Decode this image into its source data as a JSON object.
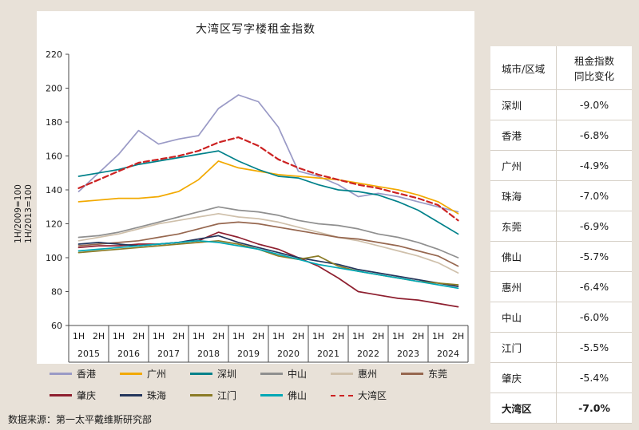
{
  "colors": {
    "page_background": "#e8e1d8",
    "panel_background": "#ffffff",
    "axis": "#4a4a4a",
    "table_grid": "#d6d0c7"
  },
  "chart_data": {
    "type": "line",
    "title": "大湾区写字楼租金指数",
    "ylim": [
      60,
      220
    ],
    "ytick_step": 20,
    "yaxis_note_lines": [
      "1H/2009=100",
      "1H/2013=100"
    ],
    "x_half_labels": [
      "1H",
      "2H"
    ],
    "years": [
      "2015",
      "2016",
      "2017",
      "2018",
      "2019",
      "2020",
      "2021",
      "2022",
      "2023",
      "2024"
    ],
    "series": [
      {
        "name": "香港",
        "color": "#9a9ac6",
        "dash": false,
        "values": [
          139,
          150,
          161,
          175,
          167,
          170,
          172,
          188,
          196,
          192,
          177,
          151,
          148,
          143,
          136,
          138,
          136,
          133,
          130,
          127
        ]
      },
      {
        "name": "广州",
        "color": "#f2a900",
        "dash": false,
        "values": [
          133,
          134,
          135,
          135,
          136,
          139,
          146,
          157,
          153,
          151,
          149,
          148,
          147,
          146,
          144,
          142,
          140,
          137,
          133,
          126
        ]
      },
      {
        "name": "深圳",
        "color": "#00818a",
        "dash": false,
        "values": [
          148,
          150,
          152,
          155,
          157,
          159,
          161,
          163,
          157,
          152,
          148,
          147,
          143,
          140,
          139,
          137,
          133,
          128,
          121,
          114
        ]
      },
      {
        "name": "中山",
        "color": "#8f8f8f",
        "dash": false,
        "values": [
          112,
          113,
          115,
          118,
          121,
          124,
          127,
          130,
          128,
          127,
          125,
          122,
          120,
          119,
          117,
          114,
          112,
          109,
          105,
          100
        ]
      },
      {
        "name": "惠州",
        "color": "#cfc0ab",
        "dash": false,
        "values": [
          110,
          112,
          114,
          117,
          120,
          122,
          124,
          126,
          124,
          123,
          121,
          118,
          115,
          112,
          110,
          107,
          104,
          101,
          97,
          91
        ]
      },
      {
        "name": "东莞",
        "color": "#96674f",
        "dash": false,
        "values": [
          107,
          108,
          109,
          110,
          112,
          114,
          117,
          120,
          121,
          120,
          118,
          116,
          114,
          112,
          111,
          109,
          107,
          104,
          101,
          95
        ]
      },
      {
        "name": "肇庆",
        "color": "#8e1f2f",
        "dash": false,
        "values": [
          106,
          107,
          107,
          108,
          108,
          109,
          110,
          115,
          112,
          108,
          105,
          100,
          95,
          88,
          80,
          78,
          76,
          75,
          73,
          71
        ]
      },
      {
        "name": "珠海",
        "color": "#24365c",
        "dash": false,
        "values": [
          108,
          109,
          108,
          107,
          108,
          109,
          111,
          113,
          109,
          106,
          103,
          100,
          98,
          96,
          93,
          91,
          89,
          87,
          85,
          83
        ]
      },
      {
        "name": "江门",
        "color": "#8a7a25",
        "dash": false,
        "values": [
          103,
          104,
          105,
          106,
          107,
          108,
          109,
          110,
          108,
          105,
          101,
          99,
          101,
          95,
          92,
          90,
          88,
          86,
          85,
          84
        ]
      },
      {
        "name": "佛山",
        "color": "#00a7b5",
        "dash": false,
        "values": [
          104,
          105,
          106,
          107,
          108,
          109,
          110,
          109,
          107,
          105,
          102,
          99,
          96,
          94,
          92,
          90,
          88,
          86,
          84,
          82
        ]
      },
      {
        "name": "大湾区",
        "color": "#cc2222",
        "dash": true,
        "values": [
          141,
          146,
          151,
          156,
          158,
          160,
          163,
          168,
          171,
          166,
          158,
          153,
          149,
          146,
          143,
          141,
          138,
          135,
          131,
          122
        ]
      }
    ],
    "legend_rows": [
      [
        "香港",
        "广州",
        "深圳",
        "中山",
        "惠州",
        "东莞"
      ],
      [
        "肇庆",
        "珠海",
        "江门",
        "佛山",
        "大湾区"
      ]
    ]
  },
  "table": {
    "header_col1": "城市/区域",
    "header_col2": [
      "租金指数",
      "同比变化"
    ],
    "rows": [
      {
        "city": "深圳",
        "value": "-9.0%"
      },
      {
        "city": "香港",
        "value": "-6.8%"
      },
      {
        "city": "广州",
        "value": "-4.9%"
      },
      {
        "city": "珠海",
        "value": "-7.0%"
      },
      {
        "city": "东莞",
        "value": "-6.9%"
      },
      {
        "city": "佛山",
        "value": "-5.7%"
      },
      {
        "city": "惠州",
        "value": "-6.4%"
      },
      {
        "city": "中山",
        "value": "-6.0%"
      },
      {
        "city": "江门",
        "value": "-5.5%"
      },
      {
        "city": "肇庆",
        "value": "-5.4%"
      },
      {
        "city": "大湾区",
        "value": "-7.0%",
        "bold": true
      }
    ]
  },
  "source": {
    "text": "数据来源：第一太平戴维斯研究部"
  }
}
